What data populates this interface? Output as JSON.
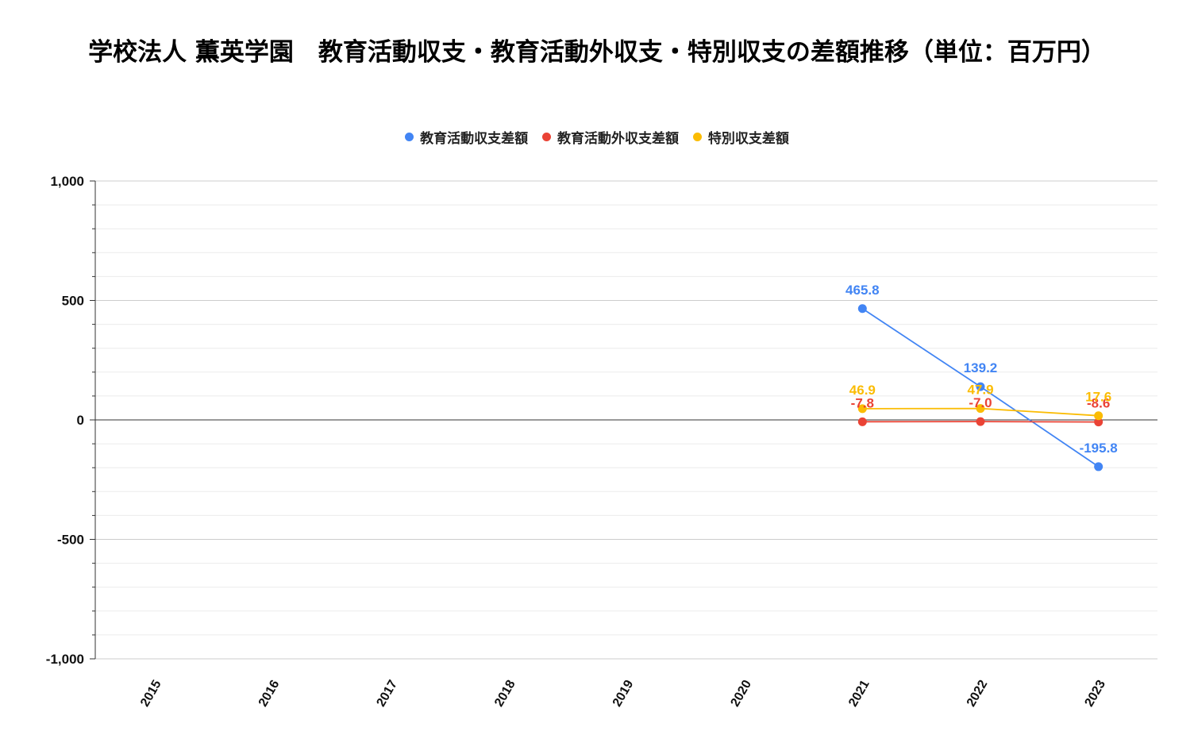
{
  "chart_data": {
    "type": "line",
    "title": "学校法人 薫英学園　教育活動収支・教育活動外収支・特別収支の差額推移（単位：百万円）",
    "xlabel": "",
    "ylabel": "",
    "ylim": [
      -1000,
      1000
    ],
    "y_ticks": [
      1000,
      500,
      0,
      -500,
      -1000
    ],
    "y_tick_labels": [
      "1,000",
      "500",
      "0",
      "-500",
      "-1,000"
    ],
    "categories": [
      "2015",
      "2016",
      "2017",
      "2018",
      "2019",
      "2020",
      "2021",
      "2022",
      "2023"
    ],
    "legend_position": "top-center",
    "grid": true,
    "series": [
      {
        "name": "教育活動収支差額",
        "color": "#4285f4",
        "values": [
          null,
          null,
          null,
          null,
          null,
          null,
          465.8,
          139.2,
          -195.8
        ],
        "labels": [
          "",
          "",
          "",
          "",
          "",
          "",
          "465.8",
          "139.2",
          "-195.8"
        ]
      },
      {
        "name": "教育活動外収支差額",
        "color": "#ea4335",
        "values": [
          null,
          null,
          null,
          null,
          null,
          null,
          -7.8,
          -7.0,
          -8.6
        ],
        "labels": [
          "",
          "",
          "",
          "",
          "",
          "",
          "-7.8",
          "-7.0",
          "-8.6"
        ]
      },
      {
        "name": "特別収支差額",
        "color": "#fbbc04",
        "values": [
          null,
          null,
          null,
          null,
          null,
          null,
          46.9,
          47.9,
          17.6
        ],
        "labels": [
          "",
          "",
          "",
          "",
          "",
          "",
          "46.9",
          "47.9",
          "17.6"
        ]
      }
    ]
  }
}
